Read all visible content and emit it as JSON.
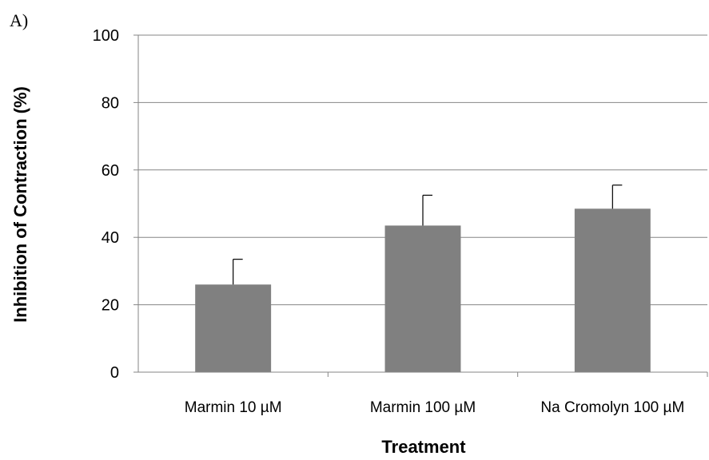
{
  "panel_label": "A)",
  "chart_data": {
    "type": "bar",
    "categories": [
      "Marmin 10 µM",
      "Marmin 100 µM",
      "Na Cromolyn 100 µM"
    ],
    "values": [
      26,
      43.5,
      48.5
    ],
    "error_upper": [
      7.5,
      9,
      7
    ],
    "title": "",
    "xlabel": "Treatment",
    "ylabel": "Inhibition of Contraction (%)",
    "ylim": [
      0,
      100
    ],
    "yticks": [
      0,
      20,
      40,
      60,
      80,
      100
    ],
    "grid": true,
    "bar_color": "#808080",
    "grid_color": "#868686",
    "legend": "none"
  }
}
